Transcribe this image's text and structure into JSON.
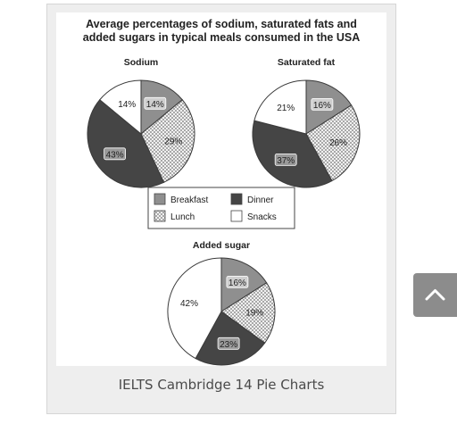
{
  "figure_title": [
    "Average percentages of sodium, saturated fats and",
    "added sugars in typical meals consumed in the USA"
  ],
  "caption": "IELTS Cambridge 14 Pie Charts",
  "scroll_top_button": {
    "icon": "chevron-up-icon"
  },
  "colors": {
    "Breakfast": "#8f8f8f",
    "Lunch": "#e6e6e6",
    "Dinner": "#454545",
    "Snacks": "#ffffff"
  },
  "legend": [
    "Breakfast",
    "Dinner",
    "Lunch",
    "Snacks"
  ],
  "chart_data": [
    {
      "type": "pie",
      "title": "Sodium",
      "categories": [
        "Breakfast",
        "Lunch",
        "Dinner",
        "Snacks"
      ],
      "values": [
        14,
        29,
        43,
        14
      ],
      "labels": [
        "14%",
        "29%",
        "43%",
        "14%"
      ]
    },
    {
      "type": "pie",
      "title": "Saturated fat",
      "categories": [
        "Breakfast",
        "Lunch",
        "Dinner",
        "Snacks"
      ],
      "values": [
        16,
        26,
        37,
        21
      ],
      "labels": [
        "16%",
        "26%",
        "37%",
        "21%"
      ]
    },
    {
      "type": "pie",
      "title": "Added sugar",
      "categories": [
        "Breakfast",
        "Lunch",
        "Dinner",
        "Snacks"
      ],
      "values": [
        16,
        19,
        23,
        42
      ],
      "labels": [
        "16%",
        "19%",
        "23%",
        "42%"
      ]
    }
  ]
}
